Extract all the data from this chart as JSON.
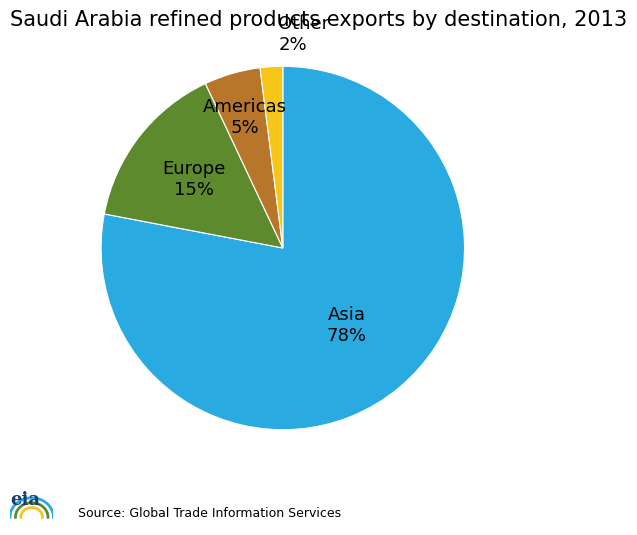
{
  "title": "Saudi Arabia refined products exports by destination, 2013",
  "slices": [
    {
      "label": "Asia",
      "value": 78,
      "color": "#29ABE2",
      "pct": "78%"
    },
    {
      "label": "Europe",
      "value": 15,
      "color": "#5D8A2C",
      "pct": "15%"
    },
    {
      "label": "Americas",
      "value": 5,
      "color": "#B8762A",
      "pct": "5%"
    },
    {
      "label": "Other",
      "value": 2,
      "color": "#F5C518",
      "pct": "2%"
    }
  ],
  "source_text": "Source: Global Trade Information Services",
  "title_fontsize": 15,
  "label_fontsize": 13,
  "background_color": "#ffffff",
  "startangle": 90
}
